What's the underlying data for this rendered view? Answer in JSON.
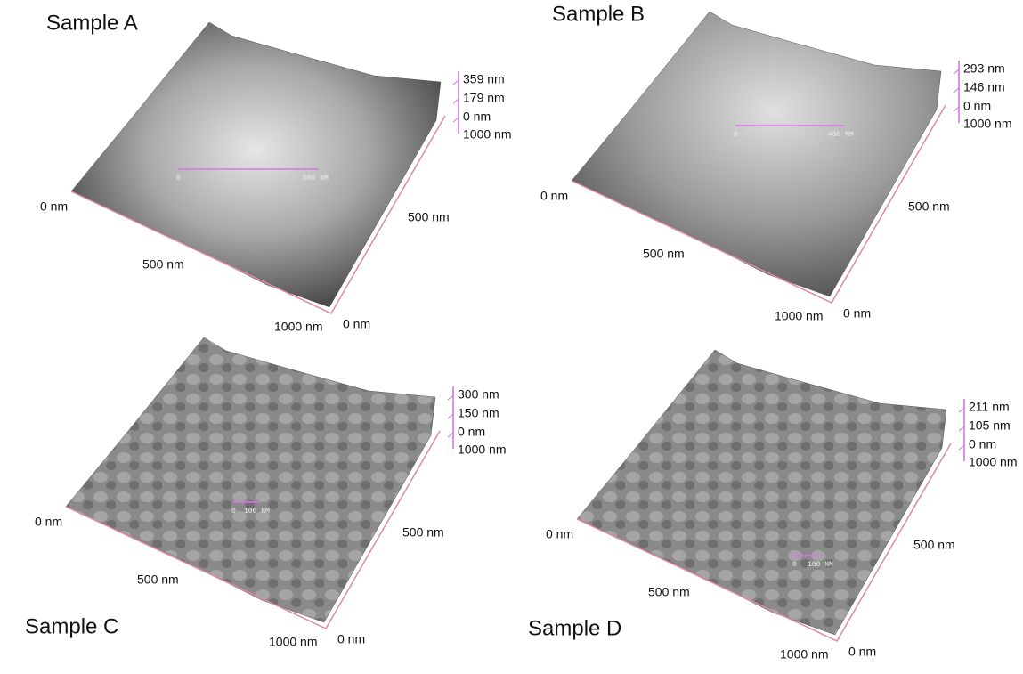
{
  "panels": [
    {
      "title": "Sample A",
      "z_labels": [
        "359 nm",
        "179 nm",
        "0 nm"
      ],
      "back_label": "1000 nm",
      "left_label": "0 nm",
      "front_mid_label": "500 nm",
      "front_end_label": "1000 nm",
      "corner_label": "0 nm",
      "right_mid_label": "500 nm",
      "scale_labels": [
        "0",
        "500 NM"
      ]
    },
    {
      "title": "Sample B",
      "z_labels": [
        "293 nm",
        "146 nm",
        "0 nm"
      ],
      "back_label": "1000 nm",
      "left_label": "0 nm",
      "front_mid_label": "500 nm",
      "front_end_label": "1000 nm",
      "corner_label": "0 nm",
      "right_mid_label": "500 nm",
      "scale_labels": [
        "0",
        "400 NM"
      ]
    },
    {
      "title": "Sample C",
      "z_labels": [
        "300 nm",
        "150 nm",
        "0 nm"
      ],
      "back_label": "1000 nm",
      "left_label": "0 nm",
      "front_mid_label": "500 nm",
      "front_end_label": "1000 nm",
      "corner_label": "0 nm",
      "right_mid_label": "500 nm",
      "scale_labels": [
        "0",
        "100 NM"
      ]
    },
    {
      "title": "Sample D",
      "z_labels": [
        "211 nm",
        "105 nm",
        "0 nm"
      ],
      "back_label": "1000 nm",
      "left_label": "0 nm",
      "front_mid_label": "500 nm",
      "front_end_label": "1000 nm",
      "corner_label": "0 nm",
      "right_mid_label": "500 nm",
      "scale_labels": [
        "0",
        "100 NM"
      ]
    }
  ]
}
